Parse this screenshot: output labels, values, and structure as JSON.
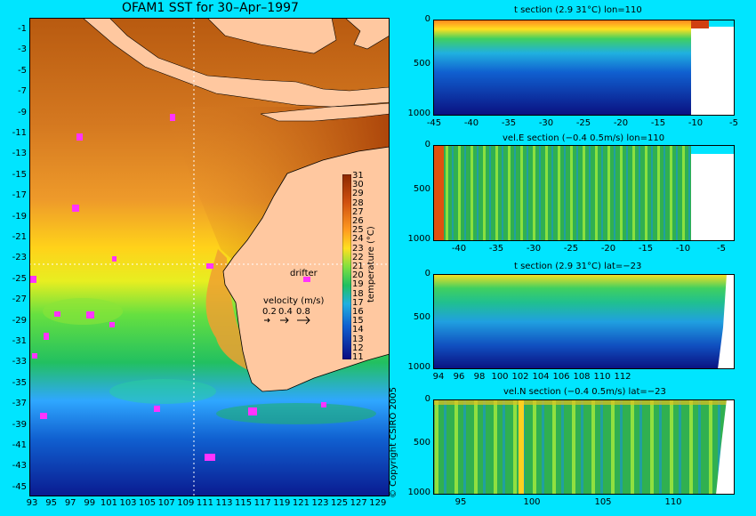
{
  "map": {
    "title": "OFAM1 SST for 30–Apr–1997",
    "lon_ticks": [
      "93",
      "95",
      "97",
      "99",
      "101",
      "103",
      "105",
      "107",
      "109",
      "111",
      "113",
      "115",
      "117",
      "119",
      "121",
      "123",
      "125",
      "127",
      "129"
    ],
    "lat_ticks": [
      "-1",
      "-3",
      "-5",
      "-7",
      "-9",
      "-11",
      "-13",
      "-15",
      "-17",
      "-19",
      "-21",
      "-23",
      "-25",
      "-27",
      "-29",
      "-31",
      "-33",
      "-35",
      "-37",
      "-39",
      "-41",
      "-43",
      "-45"
    ],
    "colorbar_ticks": [
      "31",
      "30",
      "29",
      "28",
      "27",
      "26",
      "25",
      "24",
      "23",
      "22",
      "21",
      "20",
      "19",
      "18",
      "17",
      "16",
      "15",
      "14",
      "13",
      "12",
      "11"
    ],
    "colorbar_label": "temperature (°C)",
    "drifter_label": "drifter",
    "velocity_label": "velocity (m/s)",
    "velocity_values": [
      "0.2",
      "0.4",
      "0.8"
    ],
    "copyright": "© Copyright CSIRO 2005",
    "colors": {
      "background": "#00e5ff",
      "land": "#ffc8a0",
      "drifter": "#ff33ff",
      "crosshair": "#ffffff"
    }
  },
  "sections": [
    {
      "title": "t section (2.9      31°C) lon=110",
      "x_ticks": [
        "-45",
        "-40",
        "-35",
        "-30",
        "-25",
        "-20",
        "-15",
        "-10",
        "-5"
      ],
      "y_ticks": [
        "0",
        "500",
        "1000"
      ]
    },
    {
      "title": "vel.E section (−0.4      0.5m/s) lon=110",
      "x_ticks": [
        "-40",
        "-35",
        "-30",
        "-25",
        "-20",
        "-15",
        "-10",
        "-5"
      ],
      "y_ticks": [
        "0",
        "500",
        "1000"
      ]
    },
    {
      "title": "t section (2.9      31°C) lat=−23",
      "x_ticks": [
        "94",
        "96",
        "98",
        "100",
        "102",
        "104",
        "106",
        "108",
        "110",
        "112"
      ],
      "y_ticks": [
        "0",
        "500",
        "1000"
      ]
    },
    {
      "title": "vel.N section (−0.4      0.5m/s) lat=−23",
      "x_ticks": [
        "95",
        "100",
        "105",
        "110"
      ],
      "y_ticks": [
        "0",
        "500",
        "1000"
      ]
    }
  ]
}
